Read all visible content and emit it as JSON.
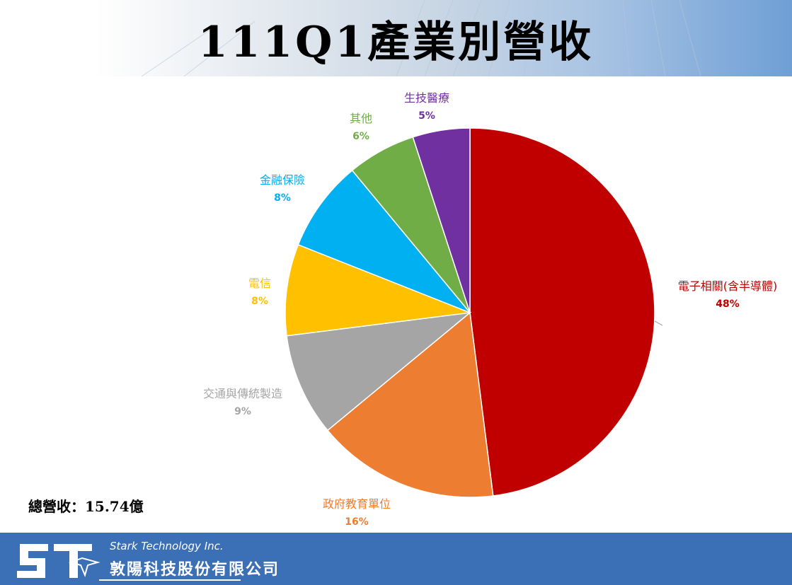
{
  "title": "111Q1產業別營收",
  "total_label": "總營收：",
  "total_value": "15.74億",
  "company": {
    "english": "Stark Technology Inc.",
    "chinese": "敦陽科技股份有限公司"
  },
  "chart_data": {
    "type": "pie",
    "title": "111Q1產業別營收",
    "start": "12 o'clock, clockwise",
    "slices": [
      {
        "label": "電子相關(含半導體)",
        "pct_label": "48%",
        "value": 48,
        "color": "#C00000"
      },
      {
        "label": "政府教育單位",
        "pct_label": "16%",
        "value": 16,
        "color": "#ED7D31"
      },
      {
        "label": "交通與傳統製造",
        "pct_label": "9%",
        "value": 9,
        "color": "#A5A5A5"
      },
      {
        "label": "電信",
        "pct_label": "8%",
        "value": 8,
        "color": "#FFC000"
      },
      {
        "label": "金融保險",
        "pct_label": "8%",
        "value": 8,
        "color": "#00B0F0"
      },
      {
        "label": "其他",
        "pct_label": "6%",
        "value": 6,
        "color": "#70AD47"
      },
      {
        "label": "生技醫療",
        "pct_label": "5%",
        "value": 5,
        "color": "#7030A0"
      }
    ]
  }
}
